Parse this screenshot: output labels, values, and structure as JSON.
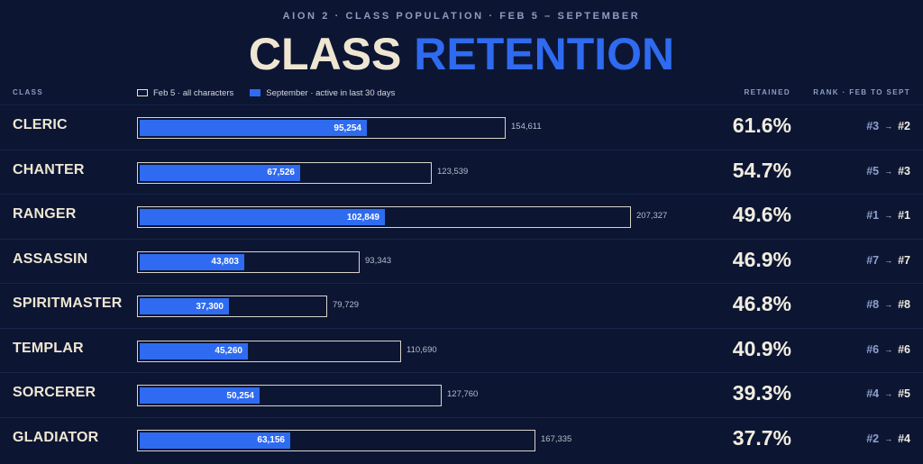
{
  "header": {
    "kicker": "AION 2 · CLASS POPULATION · FEB 5 – SEPTEMBER",
    "title_part1": "CLASS",
    "title_part2": "RETENTION"
  },
  "columns": {
    "class": "CLASS",
    "retained": "RETAINED",
    "rank": "RANK · FEB TO SEPT"
  },
  "colors": {
    "background": "#0c1633",
    "accent": "#2f6bf0",
    "cream": "#efe6d2"
  },
  "chart_data": {
    "type": "bar",
    "orientation": "horizontal",
    "xlim": [
      0,
      207327
    ],
    "series": [
      {
        "name": "Feb 5 · all characters",
        "style": "outline"
      },
      {
        "name": "September · active in last 30 days",
        "style": "fill"
      }
    ],
    "rows": [
      {
        "class": "CLERIC",
        "feb": 154611,
        "feb_label": "154,611",
        "sept": 95254,
        "sept_label": "95,254",
        "retained": "61.6%",
        "rank_from": "#3",
        "rank_to": "#2"
      },
      {
        "class": "CHANTER",
        "feb": 123539,
        "feb_label": "123,539",
        "sept": 67526,
        "sept_label": "67,526",
        "retained": "54.7%",
        "rank_from": "#5",
        "rank_to": "#3"
      },
      {
        "class": "RANGER",
        "feb": 207327,
        "feb_label": "207,327",
        "sept": 102849,
        "sept_label": "102,849",
        "retained": "49.6%",
        "rank_from": "#1",
        "rank_to": "#1"
      },
      {
        "class": "ASSASSIN",
        "feb": 93343,
        "feb_label": "93,343",
        "sept": 43803,
        "sept_label": "43,803",
        "retained": "46.9%",
        "rank_from": "#7",
        "rank_to": "#7"
      },
      {
        "class": "SPIRITMASTER",
        "feb": 79729,
        "feb_label": "79,729",
        "sept": 37300,
        "sept_label": "37,300",
        "retained": "46.8%",
        "rank_from": "#8",
        "rank_to": "#8"
      },
      {
        "class": "TEMPLAR",
        "feb": 110690,
        "feb_label": "110,690",
        "sept": 45260,
        "sept_label": "45,260",
        "retained": "40.9%",
        "rank_from": "#6",
        "rank_to": "#6"
      },
      {
        "class": "SORCERER",
        "feb": 127760,
        "feb_label": "127,760",
        "sept": 50254,
        "sept_label": "50,254",
        "retained": "39.3%",
        "rank_from": "#4",
        "rank_to": "#5"
      },
      {
        "class": "GLADIATOR",
        "feb": 167335,
        "feb_label": "167,335",
        "sept": 63156,
        "sept_label": "63,156",
        "retained": "37.7%",
        "rank_from": "#2",
        "rank_to": "#4"
      }
    ]
  }
}
